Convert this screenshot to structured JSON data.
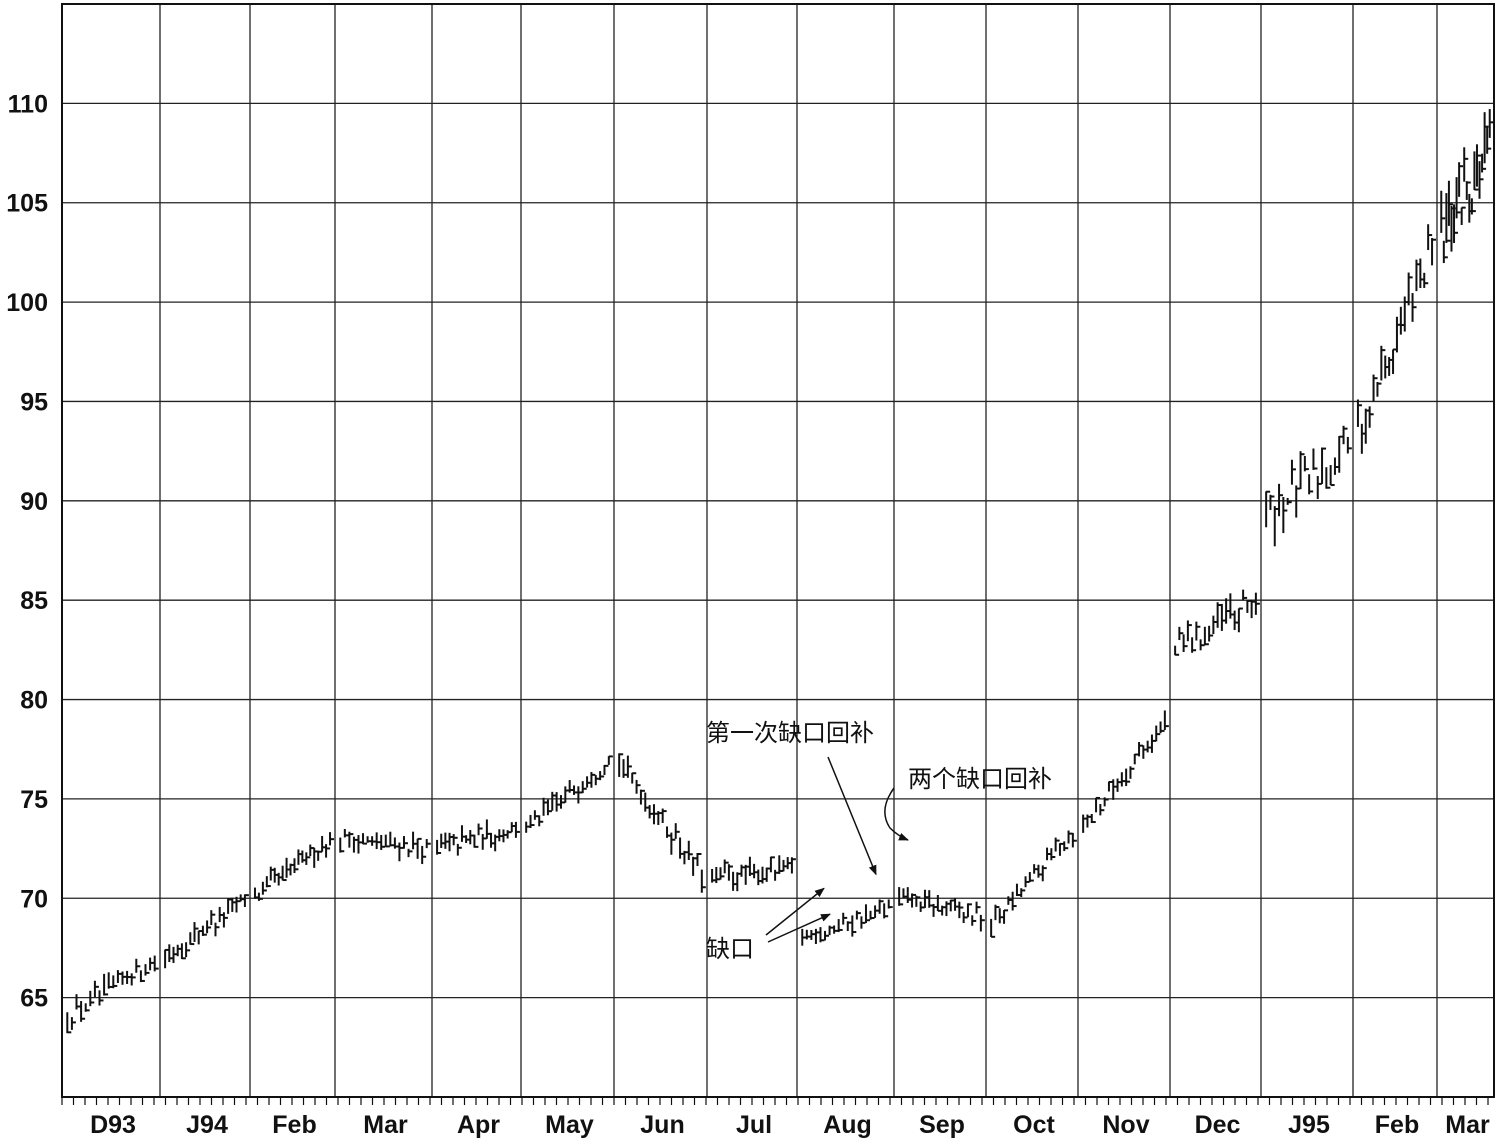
{
  "chart_data": {
    "type": "bar",
    "style": "ohlc-price-bars",
    "title": "",
    "xlabel": "",
    "ylabel": "",
    "ylim": [
      60,
      115
    ],
    "y_ticks": [
      65,
      70,
      75,
      80,
      85,
      90,
      95,
      100,
      105,
      110
    ],
    "x_tick_labels": [
      "D93",
      "J94",
      "Feb",
      "Mar",
      "Apr",
      "May",
      "Jun",
      "Jul",
      "Aug",
      "Sep",
      "Oct",
      "Nov",
      "Dec",
      "J95",
      "Feb",
      "Mar"
    ],
    "grid": true,
    "legend": "none",
    "period": {
      "start": "Dec 1993",
      "end": "Mar 1995"
    },
    "price_path": [
      {
        "month": "Dec 1993",
        "start": 64.0,
        "end": 67.0
      },
      {
        "month": "Jan 1994",
        "start": 67.0,
        "end": 70.0
      },
      {
        "month": "Feb 1994",
        "start": 70.0,
        "end": 73.0
      },
      {
        "month": "Mar 1994",
        "start": 73.0,
        "end": 72.5
      },
      {
        "month": "Apr 1994",
        "start": 72.5,
        "end": 73.5
      },
      {
        "month": "May 1994",
        "start": 73.5,
        "end": 77.0
      },
      {
        "month": "Jun 1994",
        "start": 77.0,
        "end": 71.0
      },
      {
        "month": "Jul 1994",
        "start": 71.0,
        "end": 71.5
      },
      {
        "month": "Aug 1994",
        "start": 68.0,
        "end": 69.5
      },
      {
        "month": "Sep 1994",
        "start": 70.0,
        "end": 69.0
      },
      {
        "month": "Oct 1994",
        "start": 68.5,
        "end": 73.5
      },
      {
        "month": "Nov 1994",
        "start": 73.5,
        "end": 79.0
      },
      {
        "month": "Dec 1994",
        "start": 82.5,
        "end": 85.0
      },
      {
        "month": "Jan 1995",
        "start": 89.0,
        "end": 93.0
      },
      {
        "month": "Feb 1995",
        "start": 93.0,
        "end": 103.0
      },
      {
        "month": "Mar 1995",
        "start": 103.0,
        "end": 108.0
      }
    ],
    "annotations": [
      {
        "text": "第一次缺口回补",
        "points_to": {
          "month": "Aug 1994",
          "price": 71.0
        }
      },
      {
        "text": "两个缺口回补",
        "points_to": {
          "month": "Sep 1994",
          "price": 72.5
        }
      },
      {
        "text": "缺口",
        "points_to": [
          {
            "month": "Aug 1994",
            "price": 70.5
          },
          {
            "month": "Aug 1994",
            "price": 69.2
          }
        ]
      }
    ]
  }
}
